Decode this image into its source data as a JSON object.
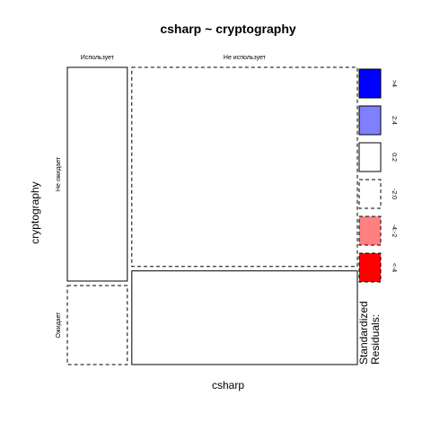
{
  "chart_data": {
    "type": "mosaic",
    "title": "csharp ~ cryptography",
    "xlabel": "csharp",
    "ylabel": "cryptography",
    "x_categories": [
      "Использует",
      "Не использует"
    ],
    "y_categories": [
      "Не ожидает",
      "Ожидает"
    ],
    "x_proportions": [
      0.21,
      0.79
    ],
    "y_proportions_by_x": [
      [
        0.73,
        0.27
      ],
      [
        0.68,
        0.32
      ]
    ],
    "residual_class": [
      [
        "0:2",
        "-2:0"
      ],
      [
        "-2:0",
        "0:2"
      ]
    ],
    "legend": {
      "title": "Standardized Residuals:",
      "entries": [
        {
          "label": ">4",
          "fill": "#0000ff",
          "dashed": false
        },
        {
          "label": "2:4",
          "fill": "#8080ff",
          "dashed": false
        },
        {
          "label": "0:2",
          "fill": "#ffffff",
          "dashed": false
        },
        {
          "label": "-2:0",
          "fill": "#ffffff",
          "dashed": true
        },
        {
          "label": "-4:-2",
          "fill": "#ff8080",
          "dashed": true
        },
        {
          "label": "<-4",
          "fill": "#ff0000",
          "dashed": true
        }
      ]
    }
  }
}
